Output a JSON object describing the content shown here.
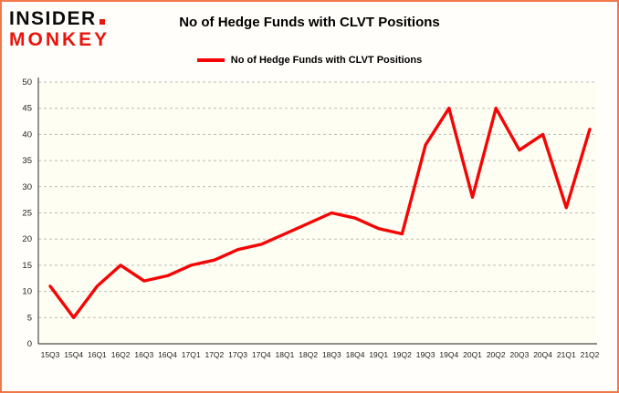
{
  "header": {
    "logo_line1": "INSIDER",
    "logo_line2": "MONKEY",
    "title": "No of Hedge Funds with CLVT Positions"
  },
  "legend": {
    "label": "No of Hedge Funds with CLVT Positions"
  },
  "chart_data": {
    "type": "line",
    "title": "No of Hedge Funds with CLVT Positions",
    "categories": [
      "15Q3",
      "15Q4",
      "16Q1",
      "16Q2",
      "16Q3",
      "16Q4",
      "17Q1",
      "17Q2",
      "17Q3",
      "17Q4",
      "18Q1",
      "18Q2",
      "18Q3",
      "18Q4",
      "19Q1",
      "19Q2",
      "19Q3",
      "19Q4",
      "20Q1",
      "20Q2",
      "20Q3",
      "20Q4",
      "21Q1",
      "21Q2"
    ],
    "values": [
      11,
      5,
      11,
      15,
      12,
      13,
      15,
      16,
      18,
      19,
      21,
      23,
      25,
      24,
      22,
      21,
      38,
      45,
      28,
      45,
      37,
      40,
      26,
      41
    ],
    "xlabel": "",
    "ylabel": "",
    "ylim": [
      0,
      50
    ],
    "ytick_interval": 5,
    "grid": true,
    "legend_position": "top",
    "line_color": "#f40505",
    "grid_color": "#bcbcbc",
    "axis_color": "#4a4a4a",
    "tick_label_color": "#222222",
    "plot_bg": "#fffef2"
  }
}
